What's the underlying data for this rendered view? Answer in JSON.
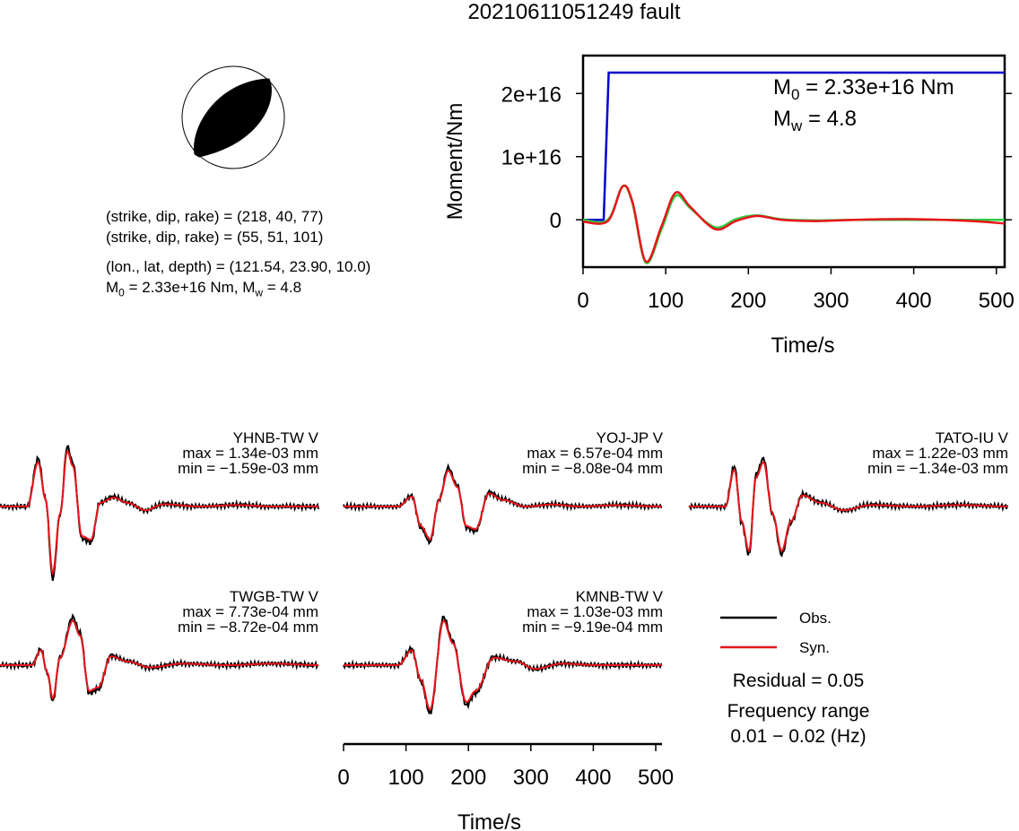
{
  "title": "20210611051249 fault",
  "info": {
    "line1": "(strike, dip, rake) = (218, 40, 77)",
    "line2": "(strike, dip, rake) = (55, 51, 101)",
    "line3": "(lon., lat, depth) = (121.54, 23.90, 10.0)",
    "m0_prefix": "M",
    "m0_sub": "0",
    "m0_rest": " = 2.33e+16 Nm, M",
    "mw_sub": "w",
    "mw_rest": " = 4.8"
  },
  "stf_annot": {
    "m0_prefix": "M",
    "m0_sub": "0",
    "m0_rest": " = 2.33e+16 Nm",
    "mw_prefix": "M",
    "mw_sub": "w",
    "mw_rest": " = 4.8"
  },
  "stations": [
    {
      "name": "YHNB-TW V",
      "max": "max = 1.34e-03 mm",
      "min": "min = −1.59e-03 mm"
    },
    {
      "name": "YOJ-JP V",
      "max": "max = 6.57e-04 mm",
      "min": "min = −8.08e-04 mm"
    },
    {
      "name": "TATO-IU V",
      "max": "max = 1.22e-03 mm",
      "min": "min = −1.34e-03 mm"
    },
    {
      "name": "TWGB-TW V",
      "max": "max = 7.73e-04 mm",
      "min": "min = −8.72e-04 mm"
    },
    {
      "name": "KMNB-TW V",
      "max": "max = 1.03e-03 mm",
      "min": "min = −9.19e-04 mm"
    }
  ],
  "legend": {
    "obs": "Obs.",
    "syn": "Syn."
  },
  "residual": "Residual = 0.05",
  "freq_label": "Frequency range",
  "freq_value": "0.01 − 0.02 (Hz)",
  "colors": {
    "obs": "#000000",
    "syn": "#e8151b",
    "moment": "#0000cc",
    "stf": "#2ecc40",
    "beachball": "#000000"
  },
  "chart_data": [
    {
      "type": "line",
      "title": "",
      "xlabel": "Time/s",
      "ylabel": "Moment/Nm",
      "xlim": [
        0,
        510
      ],
      "ylim": [
        -7500000000000000.0,
        2.6e+16
      ],
      "xticks": [
        0,
        100,
        200,
        300,
        400,
        500
      ],
      "xtick_labels": [
        "0",
        "100",
        "200",
        "300",
        "400",
        "500"
      ],
      "yticks": [
        0,
        1e+16,
        2e+16
      ],
      "ytick_labels": [
        "0",
        "1e+16",
        "2e+16"
      ],
      "series": [
        {
          "color": "#0000cc",
          "x": [
            0,
            25,
            31,
            510
          ],
          "y": [
            0,
            0,
            2.33e+16,
            2.33e+16
          ]
        },
        {
          "color": "#2ecc40",
          "x": [
            0,
            30,
            48,
            60,
            76,
            95,
            112,
            130,
            160,
            185,
            210,
            240,
            280,
            330,
            400,
            510
          ],
          "y": [
            0,
            0,
            5300000000000000.0,
            2500000000000000.0,
            -6800000000000000.0,
            -1500000000000000.0,
            3800000000000000.0,
            1800000000000000.0,
            -1200000000000000.0,
            100000000000000.0,
            700000000000000.0,
            100000000000000.0,
            -100000000000000.0,
            0,
            0,
            0
          ]
        },
        {
          "color": "#e8151b",
          "x": [
            0,
            30,
            48,
            60,
            76,
            95,
            112,
            130,
            160,
            185,
            210,
            240,
            280,
            330,
            400,
            470,
            510
          ],
          "y": [
            -300000000000000.0,
            -200000000000000.0,
            5300000000000000.0,
            2700000000000000.0,
            -6600000000000000.0,
            -1000000000000000.0,
            4300000000000000.0,
            2000000000000000.0,
            -1500000000000000.0,
            -200000000000000.0,
            600000000000000.0,
            0,
            -200000000000000.0,
            0,
            100000000000000.0,
            -200000000000000.0,
            -600000000000000.0
          ]
        }
      ]
    },
    {
      "type": "line",
      "title": "",
      "xlabel": "Time/s",
      "ylabel": "",
      "xlim": [
        0,
        510
      ],
      "xticks": [
        0,
        100,
        200,
        300,
        400,
        500
      ],
      "xtick_labels": [
        "0",
        "100",
        "200",
        "300",
        "400",
        "500"
      ],
      "series": [
        {
          "name": "Obs.",
          "color": "#000000"
        },
        {
          "name": "Syn.",
          "color": "#e8151b"
        }
      ]
    }
  ]
}
